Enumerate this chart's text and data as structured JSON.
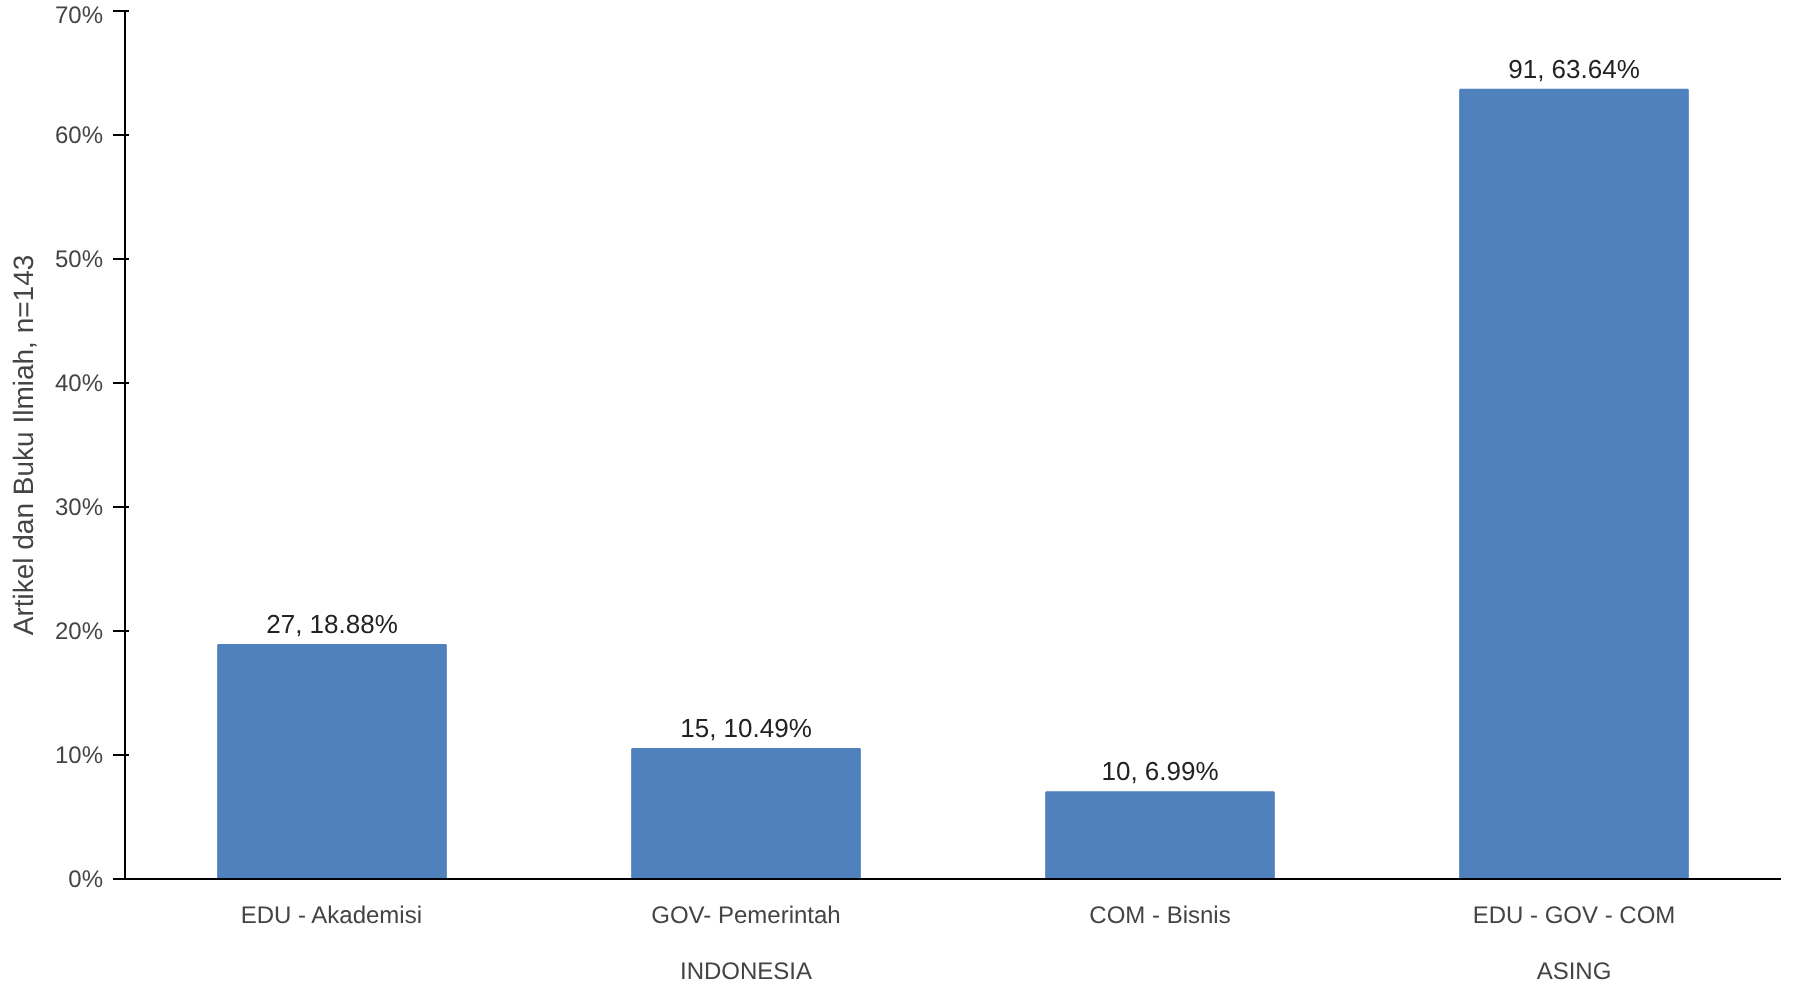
{
  "chart_data": {
    "type": "bar",
    "ylabel": "Artikel dan Buku Ilmiah, n=143",
    "categories": [
      "EDU - Akademisi",
      "GOV- Pemerintah",
      "COM - Bisnis",
      "EDU - GOV - COM"
    ],
    "values": [
      18.88,
      10.49,
      6.99,
      63.64
    ],
    "value_labels": [
      "27, 18.88%",
      "15, 10.49%",
      "10, 6.99%",
      "91, 63.64%"
    ],
    "color": "#4f81bd",
    "ylim": [
      0,
      70
    ],
    "yticks": [
      {
        "value": 0,
        "label": "0%"
      },
      {
        "value": 10,
        "label": "10%"
      },
      {
        "value": 20,
        "label": "20%"
      },
      {
        "value": 30,
        "label": "30%"
      },
      {
        "value": 40,
        "label": "40%"
      },
      {
        "value": 50,
        "label": "50%"
      },
      {
        "value": 60,
        "label": "60%"
      },
      {
        "value": 70,
        "label": "70%"
      }
    ],
    "annotations": [
      "INDONESIA",
      "ASING"
    ],
    "grid": false
  }
}
